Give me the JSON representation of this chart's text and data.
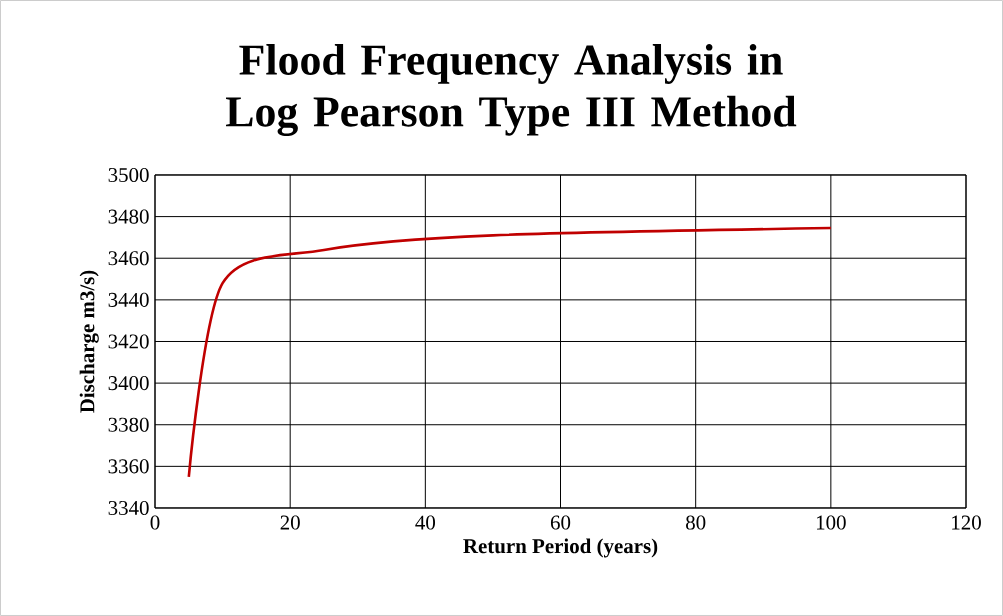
{
  "chart_data": {
    "type": "line",
    "title": "Flood Frequency Analysis in Log Pearson Type III Method",
    "xlabel": "Return Period (years)",
    "ylabel": "Discharge m3/s)",
    "x": [
      5,
      10,
      25,
      50,
      100
    ],
    "series": [
      {
        "color": "#c00000",
        "values": [
          3355,
          3448,
          3464,
          3471,
          3474.5
        ]
      }
    ],
    "xlim": [
      0,
      120
    ],
    "xticks": [
      0,
      20,
      40,
      60,
      80,
      100,
      120
    ],
    "ylim": [
      3340,
      3500
    ],
    "yticks": [
      3340,
      3360,
      3380,
      3400,
      3420,
      3440,
      3460,
      3480,
      3500
    ],
    "grid": true,
    "marker": "none",
    "line_style": "solid"
  }
}
